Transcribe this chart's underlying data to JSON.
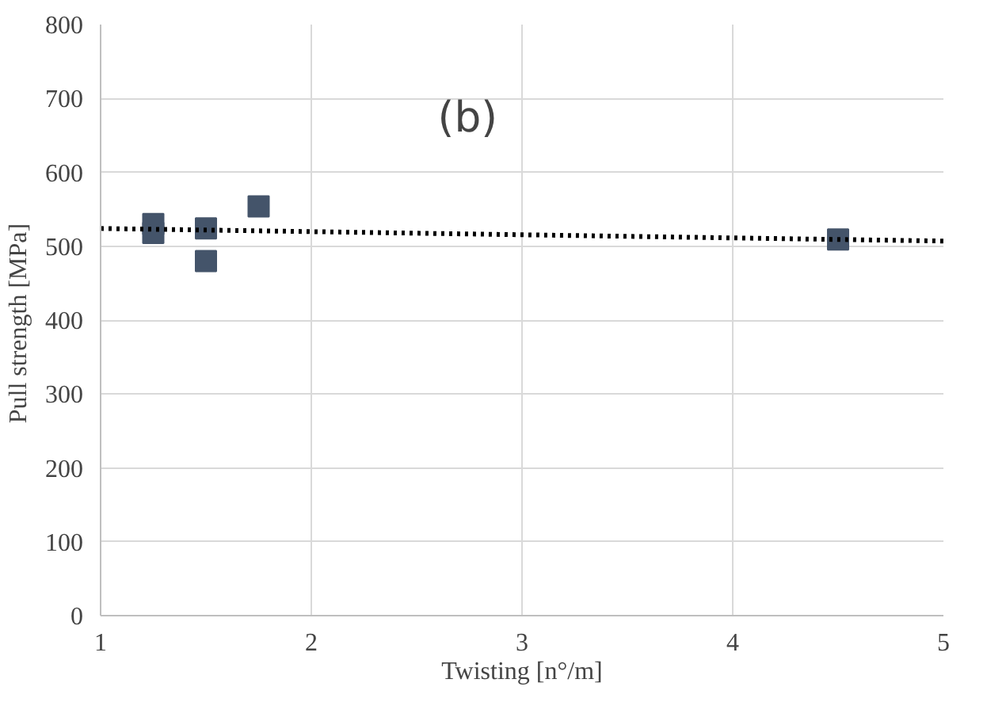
{
  "chart_data": {
    "type": "scatter",
    "xlabel": "Twisting [n°/m]",
    "ylabel": "Pull strength  [MPa]",
    "annotations": [
      "(b)"
    ],
    "xlim": [
      1,
      5
    ],
    "xticks": [
      1,
      2,
      3,
      4,
      5
    ],
    "ylim": [
      0,
      800
    ],
    "yticks": [
      0,
      100,
      200,
      300,
      400,
      500,
      600,
      700,
      800
    ],
    "grid": true,
    "marker": "square",
    "series": [
      {
        "color": "#44546a",
        "x": [
          1.25,
          1.25,
          1.5,
          1.5,
          1.75,
          4.5
        ],
        "values": [
          530,
          518,
          524,
          480,
          554,
          509
        ]
      },
      {
        "type": "line",
        "color": "#000000",
        "line_style": "dotted",
        "marker": "none",
        "x": [
          1,
          5
        ],
        "values": [
          524,
          507
        ]
      }
    ]
  }
}
